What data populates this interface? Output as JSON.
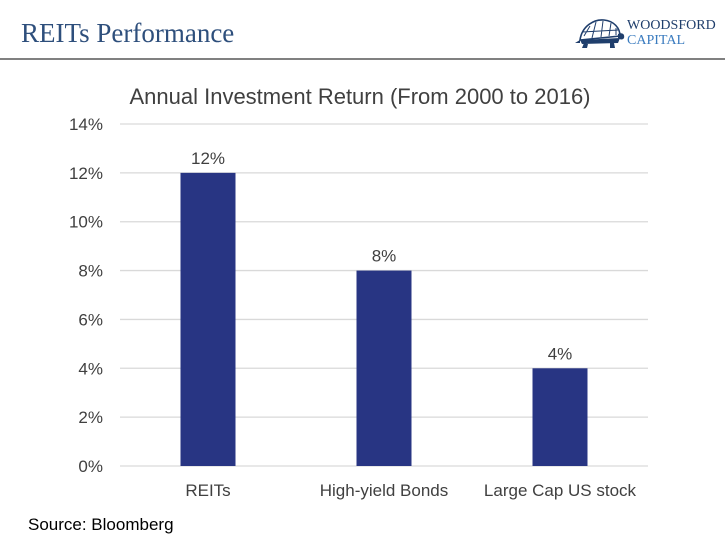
{
  "header": {
    "title": "REITs Performance",
    "logo_line1": "WOODSFORD",
    "logo_line2": "CAPITAL"
  },
  "colors": {
    "bar": "#283583",
    "grid": "#d9d9d9",
    "text": "#404040",
    "title": "#2e4f7c"
  },
  "chart_data": {
    "type": "bar",
    "title": "Annual Investment Return (From 2000 to 2016)",
    "categories": [
      "REITs",
      "High-yield Bonds",
      "Large Cap US stock"
    ],
    "values": [
      12,
      8,
      4
    ],
    "data_labels": [
      "12%",
      "8%",
      "4%"
    ],
    "xlabel": "",
    "ylabel": "",
    "ylim": [
      0,
      14
    ],
    "yticks": [
      0,
      2,
      4,
      6,
      8,
      10,
      12,
      14
    ],
    "ytick_labels": [
      "0%",
      "2%",
      "4%",
      "6%",
      "8%",
      "10%",
      "12%",
      "14%"
    ],
    "grid": true,
    "legend": "none"
  },
  "footer": {
    "source": "Source: Bloomberg"
  }
}
